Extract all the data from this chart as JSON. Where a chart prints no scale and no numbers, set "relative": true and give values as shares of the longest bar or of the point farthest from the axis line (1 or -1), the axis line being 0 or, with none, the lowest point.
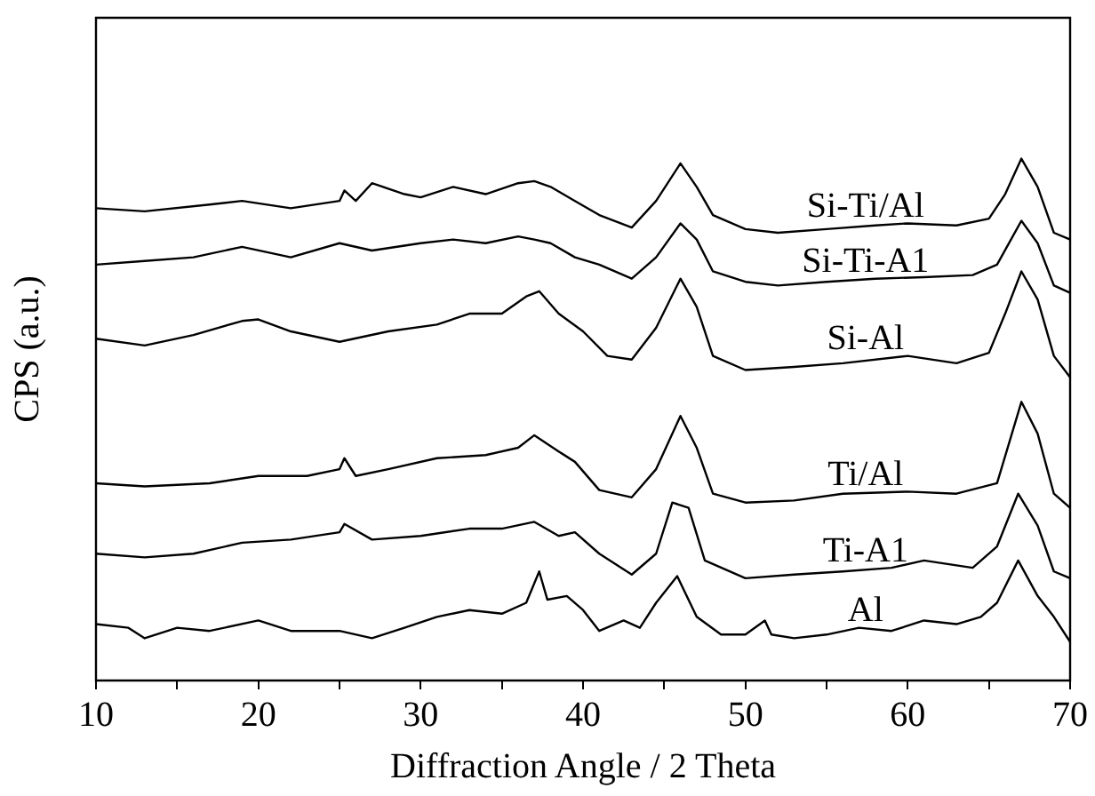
{
  "chart_data": {
    "type": "line",
    "xlabel": "Diffraction Angle / 2 Theta",
    "ylabel": "CPS (a.u.)",
    "relative": true,
    "grid": false,
    "legend": false,
    "marker": "none",
    "line_style": "solid",
    "xlim": [
      10,
      70
    ],
    "xticks": [
      10,
      {
        "value": 15,
        "label": null
      },
      20,
      {
        "value": 25,
        "label": null
      },
      30,
      {
        "value": 35,
        "label": null
      },
      40,
      {
        "value": 45,
        "label": null
      },
      50,
      {
        "value": 55,
        "label": null
      },
      60,
      {
        "value": 65,
        "label": null
      },
      70
    ],
    "series": [
      {
        "name": "Si-Ti/Al",
        "color": "#000000",
        "x": [
          10,
          13,
          17,
          19,
          22,
          25,
          25.3,
          26,
          27,
          29,
          30,
          32,
          34,
          36,
          37,
          38,
          39.5,
          41,
          43,
          44.5,
          46,
          47,
          48,
          50,
          52,
          55,
          58,
          60,
          63,
          65,
          66,
          67,
          68,
          69,
          70
        ],
        "values": [
          0.905,
          0.899,
          0.912,
          0.919,
          0.905,
          0.919,
          0.939,
          0.919,
          0.953,
          0.932,
          0.926,
          0.946,
          0.932,
          0.953,
          0.957,
          0.946,
          0.919,
          0.892,
          0.868,
          0.919,
          0.991,
          0.946,
          0.892,
          0.865,
          0.858,
          0.865,
          0.872,
          0.876,
          0.872,
          0.885,
          0.932,
          1.0,
          0.946,
          0.858,
          0.845
        ]
      },
      {
        "name": "Si-Ti-A1",
        "color": "#000000",
        "x": [
          10,
          13,
          16,
          19,
          22,
          25,
          27,
          30,
          32,
          34,
          36,
          37,
          38,
          39.5,
          41,
          43,
          44.5,
          46,
          47,
          48,
          50,
          52,
          55,
          58,
          61,
          64,
          65.5,
          67,
          68,
          69,
          70
        ],
        "values": [
          0.797,
          0.804,
          0.811,
          0.831,
          0.811,
          0.838,
          0.824,
          0.838,
          0.845,
          0.838,
          0.851,
          0.845,
          0.838,
          0.811,
          0.797,
          0.77,
          0.811,
          0.876,
          0.845,
          0.784,
          0.764,
          0.757,
          0.764,
          0.77,
          0.773,
          0.777,
          0.797,
          0.881,
          0.838,
          0.757,
          0.743
        ]
      },
      {
        "name": "Si-Al",
        "color": "#000000",
        "x": [
          10,
          13,
          16,
          19,
          20,
          22,
          25,
          28,
          31,
          33,
          35,
          36.5,
          37.3,
          38.5,
          40,
          41.5,
          43,
          44.5,
          46,
          47,
          48,
          50,
          53,
          56,
          60,
          63,
          65,
          66,
          67,
          68,
          69,
          70
        ],
        "values": [
          0.655,
          0.642,
          0.662,
          0.689,
          0.692,
          0.669,
          0.649,
          0.669,
          0.682,
          0.703,
          0.703,
          0.736,
          0.746,
          0.703,
          0.669,
          0.622,
          0.615,
          0.676,
          0.77,
          0.716,
          0.622,
          0.595,
          0.601,
          0.608,
          0.622,
          0.608,
          0.628,
          0.703,
          0.784,
          0.73,
          0.622,
          0.581
        ]
      },
      {
        "name": "Ti/Al",
        "color": "#000000",
        "x": [
          10,
          13,
          17,
          20,
          23,
          25,
          25.3,
          26,
          28,
          31,
          34,
          36,
          37,
          38.5,
          39.5,
          41,
          43,
          44.5,
          46,
          47,
          48,
          50,
          53,
          56,
          60,
          63,
          65.5,
          67,
          68,
          69,
          70
        ],
        "values": [
          0.378,
          0.372,
          0.378,
          0.392,
          0.392,
          0.405,
          0.426,
          0.392,
          0.405,
          0.426,
          0.432,
          0.446,
          0.47,
          0.439,
          0.419,
          0.365,
          0.351,
          0.405,
          0.507,
          0.446,
          0.358,
          0.341,
          0.345,
          0.358,
          0.362,
          0.358,
          0.378,
          0.534,
          0.473,
          0.358,
          0.331
        ]
      },
      {
        "name": "Ti-A1",
        "color": "#000000",
        "x": [
          10,
          13,
          16,
          19,
          22,
          25,
          25.3,
          27,
          30,
          33,
          35,
          37,
          38.5,
          39.5,
          41,
          43,
          44.5,
          45.5,
          46.5,
          47.5,
          50,
          53,
          56,
          59,
          61,
          64,
          65.5,
          66.8,
          68,
          69,
          70
        ],
        "values": [
          0.243,
          0.236,
          0.243,
          0.264,
          0.27,
          0.284,
          0.3,
          0.27,
          0.277,
          0.291,
          0.291,
          0.304,
          0.277,
          0.284,
          0.243,
          0.203,
          0.243,
          0.341,
          0.331,
          0.23,
          0.196,
          0.203,
          0.209,
          0.216,
          0.23,
          0.216,
          0.257,
          0.358,
          0.297,
          0.209,
          0.196
        ]
      },
      {
        "name": "Al",
        "color": "#000000",
        "x": [
          10,
          12,
          13,
          15,
          17,
          20,
          22,
          25,
          27,
          29,
          31,
          33,
          35,
          36.5,
          37.3,
          37.8,
          39,
          40,
          41,
          42.5,
          43.5,
          44.5,
          45.8,
          47,
          48.5,
          50,
          51.2,
          51.6,
          53,
          55,
          57,
          59,
          61,
          63,
          64.5,
          65.5,
          66.8,
          68,
          69,
          70
        ],
        "values": [
          0.108,
          0.101,
          0.081,
          0.101,
          0.095,
          0.115,
          0.095,
          0.095,
          0.081,
          0.101,
          0.122,
          0.135,
          0.128,
          0.149,
          0.209,
          0.155,
          0.162,
          0.135,
          0.095,
          0.115,
          0.101,
          0.149,
          0.2,
          0.122,
          0.088,
          0.088,
          0.115,
          0.088,
          0.081,
          0.088,
          0.101,
          0.095,
          0.115,
          0.108,
          0.122,
          0.149,
          0.23,
          0.162,
          0.122,
          0.074
        ]
      }
    ]
  }
}
